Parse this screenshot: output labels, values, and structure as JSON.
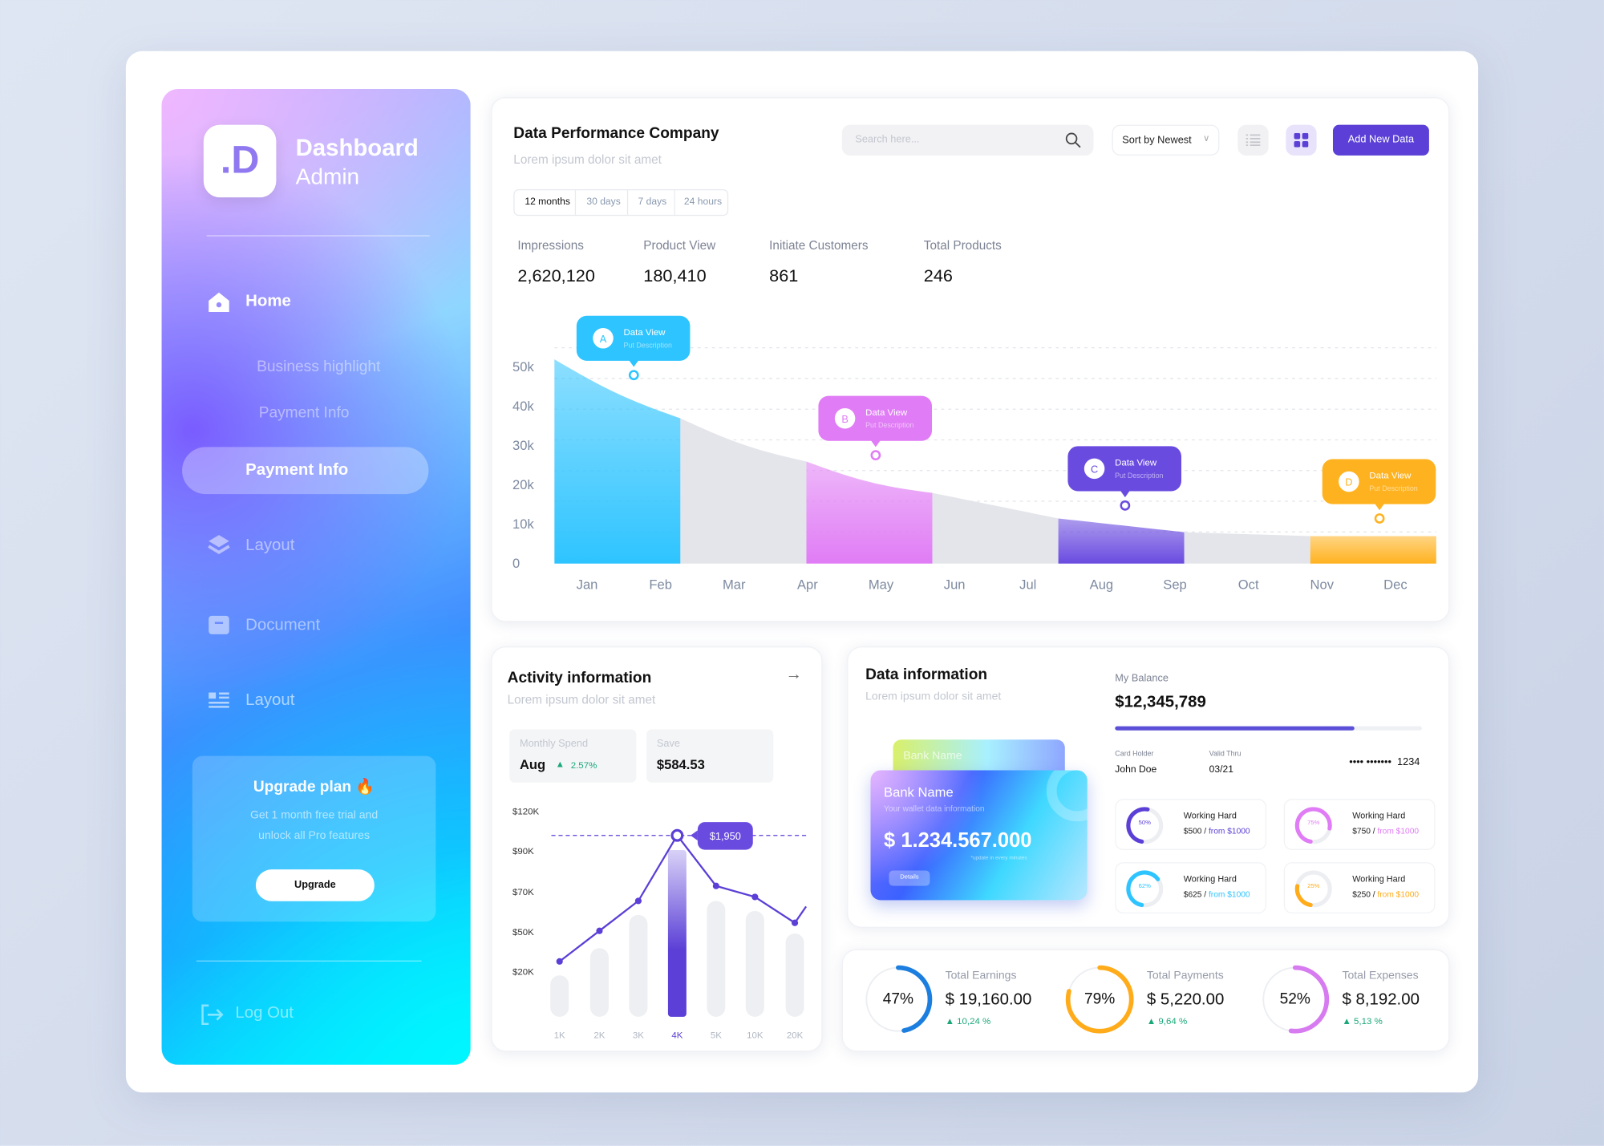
{
  "colors": {
    "accent": "#5b3fd6",
    "blue": "#2ec4ff",
    "pink": "#e07cf5",
    "purple": "#6a4be0",
    "orange": "#ffb21f",
    "green": "#1aa87a"
  },
  "sidebar": {
    "logo": ".D",
    "title": "Dashboard",
    "subtitle": "Admin",
    "items": [
      {
        "label": "Home",
        "icon": "home-icon"
      },
      {
        "label": "Business highlight"
      },
      {
        "label": "Payment Info"
      },
      {
        "label": "Payment Info",
        "active": true
      },
      {
        "label": "Layout",
        "icon": "layers-icon"
      },
      {
        "label": "Document",
        "icon": "archive-icon"
      },
      {
        "label": "Layout",
        "icon": "list-layout-icon"
      }
    ],
    "upgrade": {
      "title": "Upgrade plan 🔥",
      "text1": "Get 1 month free trial and",
      "text2": "unlock all Pro features",
      "button": "Upgrade"
    },
    "logout": "Log Out"
  },
  "header": {
    "title": "Data Performance Company",
    "subtitle": "Lorem ipsum dolor sit amet",
    "search_placeholder": "Search here...",
    "sort": "Sort by Newest",
    "add_button": "Add New Data",
    "tabs": [
      "12 months",
      "30 days",
      "7 days",
      "24 hours"
    ],
    "active_tab": "12 months",
    "stats": [
      {
        "label": "Impressions",
        "value": "2,620,120"
      },
      {
        "label": "Product View",
        "value": "180,410"
      },
      {
        "label": "Initiate Customers",
        "value": "861"
      },
      {
        "label": "Total Products",
        "value": "246"
      }
    ]
  },
  "chart_data": [
    {
      "type": "area",
      "y_ticks": [
        "0",
        "10k",
        "20k",
        "30k",
        "40k",
        "50k"
      ],
      "ylim": [
        0,
        50000
      ],
      "categories": [
        "Jan",
        "Feb",
        "Mar",
        "Apr",
        "May",
        "Jun",
        "Jul",
        "Aug",
        "Sep",
        "Oct",
        "Nov",
        "Dec"
      ],
      "curve_values_k": [
        52,
        37,
        26,
        18,
        11.5,
        8,
        7,
        7
      ],
      "segment_colors": [
        "#2ec4ff",
        "#e4e5ea",
        "#e07cf5",
        "#e4e5ea",
        "#6a4be0",
        "#e4e5ea",
        "#ffb21f"
      ],
      "markers": [
        {
          "letter": "A",
          "title": "Data View",
          "desc": "Put Description",
          "value_k": 48,
          "color": "#2ec4ff",
          "pos": 0.63
        },
        {
          "letter": "B",
          "title": "Data View",
          "desc": "Put Description",
          "value_k": 27.6,
          "color": "#e07cf5",
          "pos": 2.55
        },
        {
          "letter": "C",
          "title": "Data View",
          "desc": "Put Description",
          "value_k": 14.8,
          "color": "#6a4be0",
          "pos": 4.53
        },
        {
          "letter": "D",
          "title": "Data View",
          "desc": "Put Description",
          "value_k": 11.5,
          "color": "#ffb21f",
          "pos": 6.55
        }
      ]
    },
    {
      "type": "bar+line",
      "y_ticks": [
        "$120K",
        "$90K",
        "$70K",
        "$50K",
        "$20K"
      ],
      "categories": [
        "1K",
        "2K",
        "3K",
        "4K",
        "5K",
        "10K",
        "20K"
      ],
      "highlight": "4K",
      "bars_k": [
        18,
        37,
        58,
        90,
        65,
        60,
        48
      ],
      "line_k": [
        27,
        50,
        65,
        101,
        72,
        67,
        54
      ],
      "tooltip": "$1,950"
    }
  ],
  "activity": {
    "title": "Activity information",
    "subtitle": "Lorem ipsum dolor sit amet",
    "monthly_label": "Monthly Spend",
    "monthly_value": "Aug",
    "monthly_change": "2.57%",
    "save_label": "Save",
    "save_value": "$584.53"
  },
  "data_info": {
    "title": "Data information",
    "subtitle": "Lorem ipsum dolor sit amet",
    "back_card_name": "Bank Name",
    "card": {
      "bank": "Bank Name",
      "desc": "Your wallet data information",
      "amount": "$ 1.234.567.000",
      "note": "*update in every minutes",
      "button": "Details"
    },
    "balance_label": "My Balance",
    "balance": "$12,345,789",
    "balance_progress": 0.78,
    "holder_label": "Card Holder",
    "holder": "John Doe",
    "valid_label": "Valid Thru",
    "valid": "03/21",
    "card_number": "•••• •••••••  1234",
    "goals": [
      {
        "pct": 50,
        "pct_label": "50%",
        "title": "Working Hard",
        "amount": "$500",
        "from": "from $1000",
        "color": "#5b3fd6"
      },
      {
        "pct": 75,
        "pct_label": "75%",
        "title": "Working Hard",
        "amount": "$750",
        "from": "from $1000",
        "color": "#e07cf5"
      },
      {
        "pct": 62,
        "pct_label": "62%",
        "title": "Working Hard",
        "amount": "$625",
        "from": "from $1000",
        "color": "#2ec4ff"
      },
      {
        "pct": 25,
        "pct_label": "25%",
        "title": "Working Hard",
        "amount": "$250",
        "from": "from $1000",
        "color": "#ffab1a"
      }
    ]
  },
  "totals": [
    {
      "pct": 47,
      "pct_label": "47%",
      "label": "Total Earnings",
      "value": "$ 19,160.00",
      "change": "10,24 %",
      "color": "#1c7fe0"
    },
    {
      "pct": 79,
      "pct_label": "79%",
      "label": "Total Payments",
      "value": "$ 5,220.00",
      "change": "9,64 %",
      "color": "#ffab1a"
    },
    {
      "pct": 52,
      "pct_label": "52%",
      "label": "Total Expenses",
      "value": "$ 8,192.00",
      "change": "5,13 %",
      "color": "#d77cf0"
    }
  ]
}
